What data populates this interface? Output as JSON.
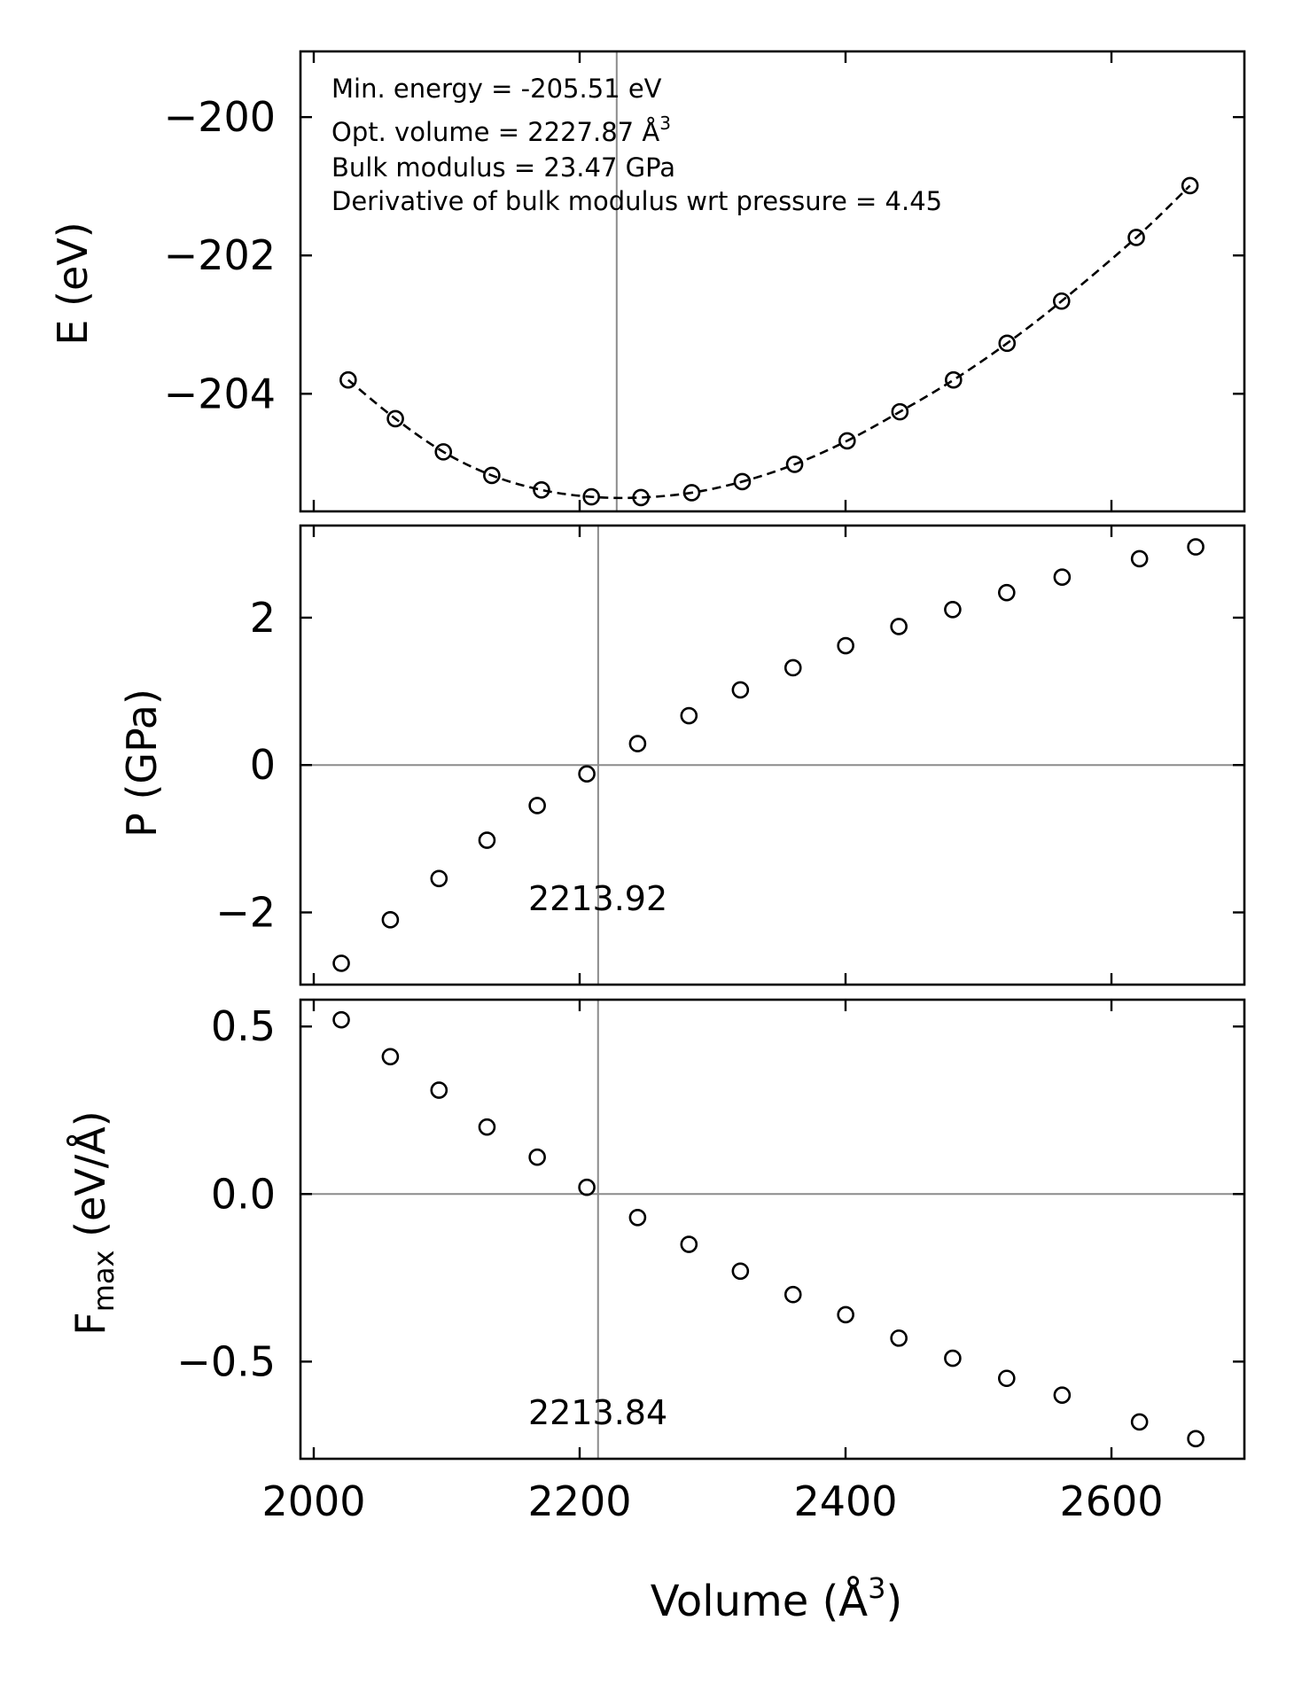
{
  "chart_data": [
    {
      "type": "scatter",
      "panel": "energy",
      "ylabel": "E (eV)",
      "xlim": [
        1990,
        2700
      ],
      "ylim": [
        -205.7,
        -199.05
      ],
      "yticks": [
        -204,
        -202,
        -200
      ],
      "ytick_labels": [
        "−204",
        "−202",
        "−200"
      ],
      "x": [
        2025.9,
        2061.4,
        2097.5,
        2133.9,
        2171.3,
        2208.8,
        2246.1,
        2284.3,
        2322.3,
        2361.7,
        2401.2,
        2440.9,
        2481.2,
        2521.5,
        2562.5,
        2618.7,
        2659.1
      ],
      "y": [
        -203.8,
        -204.36,
        -204.84,
        -205.18,
        -205.39,
        -205.49,
        -205.5,
        -205.43,
        -205.27,
        -205.02,
        -204.68,
        -204.26,
        -203.8,
        -203.27,
        -202.66,
        -201.74,
        -200.99
      ],
      "fit_line": true,
      "vline_x": 2227.87,
      "annotations": [
        "Min. energy = -205.51 eV",
        "Opt. volume = 2227.87 Å",
        "Bulk modulus = 23.47 GPa",
        "Derivative of bulk modulus wrt pressure = 4.45"
      ],
      "annotation_superscript": "3"
    },
    {
      "type": "scatter",
      "panel": "pressure",
      "ylabel": "P (GPa)",
      "xlim": [
        1990,
        2700
      ],
      "ylim": [
        -2.98,
        3.25
      ],
      "yticks": [
        -2,
        0,
        2
      ],
      "ytick_labels": [
        "−2",
        "0",
        "2"
      ],
      "x": [
        2020.7,
        2057.6,
        2094.2,
        2130.3,
        2168.1,
        2205.4,
        2243.6,
        2282.2,
        2320.9,
        2360.5,
        2400.1,
        2440.1,
        2480.6,
        2521.2,
        2562.9,
        2621.1,
        2663.4
      ],
      "y": [
        -2.69,
        -2.1,
        -1.54,
        -1.02,
        -0.55,
        -0.12,
        0.29,
        0.67,
        1.02,
        1.32,
        1.62,
        1.88,
        2.11,
        2.34,
        2.55,
        2.8,
        2.96
      ],
      "hline_y": 0,
      "vline_x": 2213.92,
      "vline_label": "2213.92"
    },
    {
      "type": "scatter",
      "panel": "force",
      "ylabel_main": "F",
      "ylabel_sub": "max",
      "ylabel_rest": " (eV/Å)",
      "xlabel_main": "Volume (Å",
      "xlabel_sup": "3",
      "xlabel_end": ")",
      "xlim": [
        1990,
        2700
      ],
      "ylim": [
        -0.79,
        0.58
      ],
      "xticks": [
        2000,
        2200,
        2400,
        2600
      ],
      "xtick_labels": [
        "2000",
        "2200",
        "2400",
        "2600"
      ],
      "yticks": [
        -0.5,
        0.0,
        0.5
      ],
      "ytick_labels": [
        "−0.5",
        "0.0",
        "0.5"
      ],
      "x": [
        2020.7,
        2057.6,
        2094.2,
        2130.3,
        2168.1,
        2205.4,
        2243.6,
        2282.2,
        2320.9,
        2360.5,
        2400.1,
        2440.1,
        2480.6,
        2521.2,
        2562.9,
        2621.1,
        2663.4
      ],
      "y": [
        0.52,
        0.41,
        0.31,
        0.2,
        0.11,
        0.02,
        -0.07,
        -0.15,
        -0.23,
        -0.3,
        -0.36,
        -0.43,
        -0.49,
        -0.55,
        -0.6,
        -0.68,
        -0.73
      ],
      "hline_y": 0,
      "vline_x": 2213.84,
      "vline_label": "2213.84"
    }
  ]
}
